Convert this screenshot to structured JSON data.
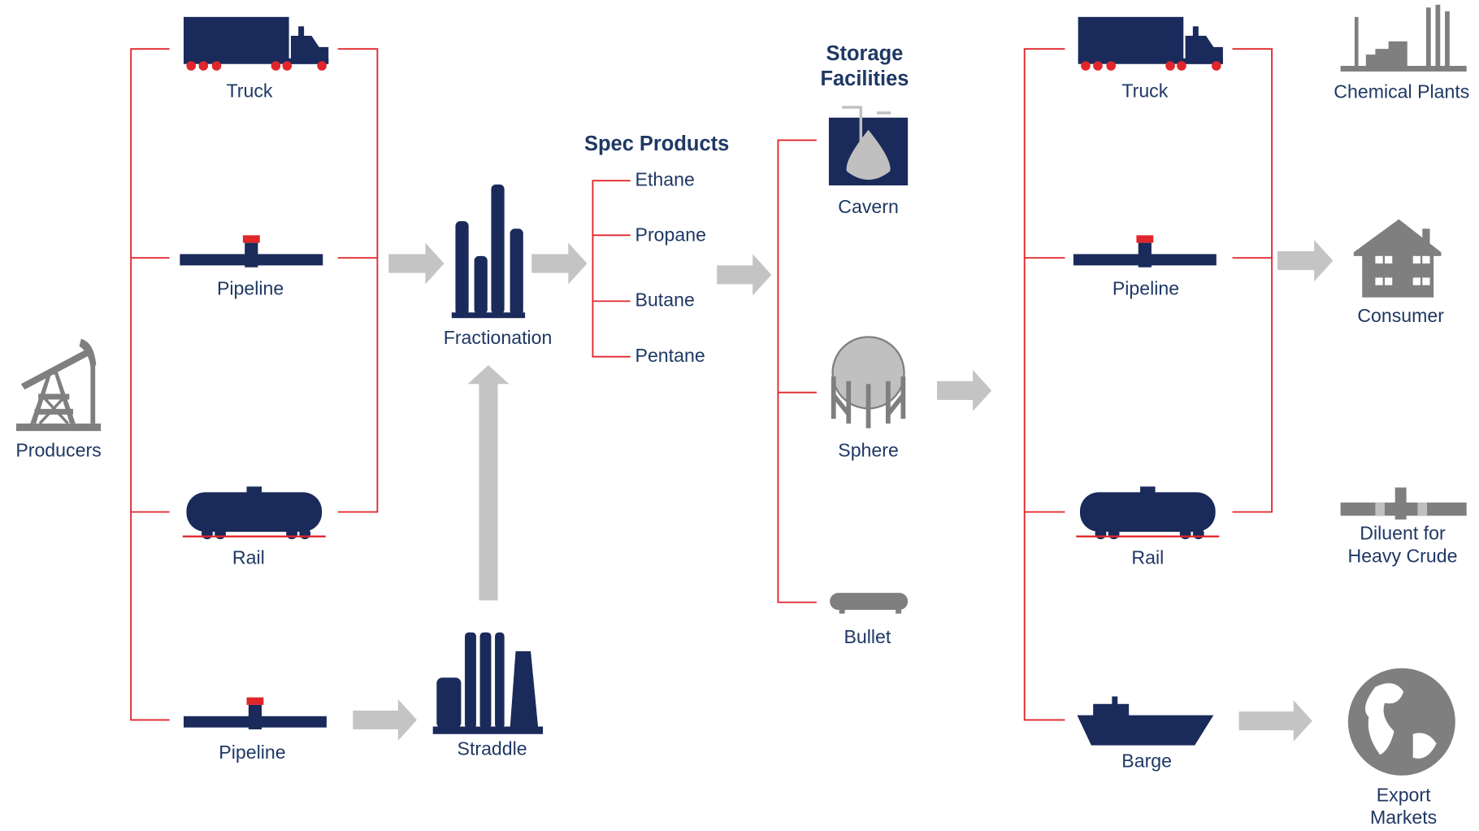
{
  "producers": {
    "label": "Producers"
  },
  "inbound_transport": [
    "Truck",
    "Pipeline",
    "Rail",
    "Pipeline"
  ],
  "processing": [
    "Fractionation",
    "Straddle"
  ],
  "spec_products": {
    "title": "Spec Products",
    "items": [
      "Ethane",
      "Propane",
      "Butane",
      "Pentane"
    ]
  },
  "storage": {
    "title_lines": [
      "Storage",
      "Facilities"
    ],
    "items": [
      "Cavern",
      "Sphere",
      "Bullet"
    ]
  },
  "outbound_transport": [
    "Truck",
    "Pipeline",
    "Rail",
    "Barge"
  ],
  "markets": [
    [
      "Chemical Plants"
    ],
    [
      "Consumer"
    ],
    [
      "Diluent for",
      "Heavy Crude"
    ],
    [
      "Export",
      "Markets"
    ]
  ]
}
